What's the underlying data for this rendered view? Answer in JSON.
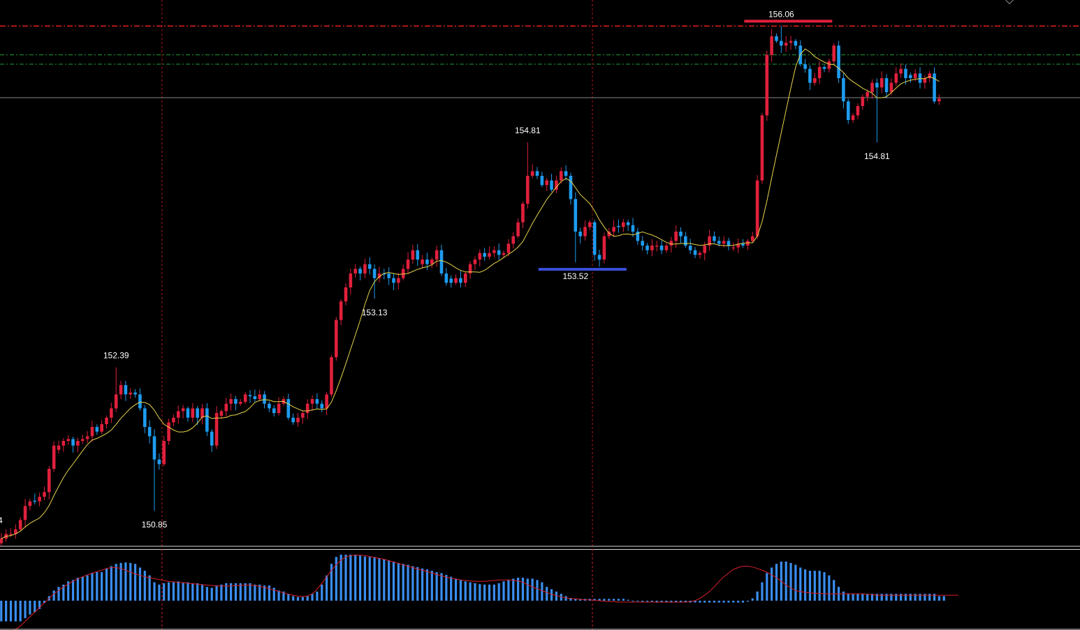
{
  "chart_data": [
    {
      "type": "candlestick",
      "title": "",
      "colors": {
        "up": "#e0203c",
        "down": "#1e9cf0",
        "ma": "#e8d44a",
        "background": "#000000",
        "grid_v": "#b01818"
      },
      "price_range": [
        150.2,
        156.25
      ],
      "levels": {
        "resistance_red": 156.06,
        "green_upper": 155.75,
        "green_lower": 155.65,
        "last_price_line": 155.29
      },
      "annotations": [
        {
          "price": 152.39,
          "text": "152.39",
          "kind": "high",
          "idx": 24
        },
        {
          "price": 150.85,
          "text": "150.85",
          "kind": "low",
          "idx": 32
        },
        {
          "price": 153.13,
          "text": "153.13",
          "kind": "low",
          "idx": 78
        },
        {
          "price": 154.81,
          "text": "154.81",
          "kind": "high",
          "idx": 110
        },
        {
          "price": 153.52,
          "text": "153.52",
          "kind": "low",
          "idx": 120,
          "bar": "#3a4ed8"
        },
        {
          "price": 156.06,
          "text": "156.06",
          "kind": "high",
          "idx": 163,
          "bar": "#e0203c"
        },
        {
          "price": 154.81,
          "text": "154.81",
          "kind": "low",
          "idx": 183
        }
      ],
      "left_edge_fragment": "4",
      "closes": [
        150.55,
        150.6,
        150.6,
        150.65,
        150.75,
        150.9,
        150.95,
        150.95,
        151.0,
        151.05,
        151.3,
        151.55,
        151.55,
        151.6,
        151.62,
        151.55,
        151.6,
        151.62,
        151.65,
        151.75,
        151.7,
        151.78,
        151.85,
        151.95,
        152.1,
        152.2,
        152.1,
        152.12,
        152.1,
        151.95,
        151.75,
        151.65,
        151.4,
        151.35,
        151.6,
        151.8,
        151.85,
        151.92,
        151.95,
        151.85,
        151.95,
        151.85,
        151.95,
        151.7,
        151.55,
        151.9,
        151.92,
        152.0,
        152.05,
        152.0,
        152.02,
        152.1,
        152.08,
        152.05,
        152.1,
        152.0,
        151.95,
        151.9,
        152.0,
        152.05,
        151.85,
        151.8,
        151.85,
        151.9,
        152.0,
        152.05,
        152.0,
        151.95,
        152.1,
        152.5,
        152.9,
        153.1,
        153.25,
        153.4,
        153.45,
        153.4,
        153.5,
        153.45,
        153.35,
        153.4,
        153.4,
        153.35,
        153.3,
        153.35,
        153.45,
        153.55,
        153.65,
        153.55,
        153.55,
        153.5,
        153.55,
        153.65,
        153.4,
        153.3,
        153.3,
        153.35,
        153.3,
        153.4,
        153.5,
        153.55,
        153.62,
        153.58,
        153.62,
        153.65,
        153.6,
        153.62,
        153.72,
        153.8,
        153.95,
        154.15,
        154.45,
        154.5,
        154.45,
        154.35,
        154.4,
        154.3,
        154.4,
        154.5,
        154.45,
        154.2,
        153.85,
        153.8,
        153.9,
        153.95,
        153.6,
        153.55,
        153.8,
        153.85,
        153.9,
        153.9,
        153.95,
        153.92,
        153.85,
        153.75,
        153.7,
        153.65,
        153.7,
        153.7,
        153.65,
        153.7,
        153.75,
        153.85,
        153.8,
        153.7,
        153.65,
        153.6,
        153.62,
        153.7,
        153.8,
        153.75,
        153.72,
        153.75,
        153.7,
        153.68,
        153.72,
        153.7,
        153.75,
        153.8,
        154.4,
        155.1,
        155.75,
        155.95,
        155.9,
        155.85,
        155.88,
        155.9,
        155.85,
        155.65,
        155.6,
        155.45,
        155.5,
        155.62,
        155.6,
        155.68,
        155.85,
        155.5,
        155.25,
        155.05,
        155.1,
        155.2,
        155.3,
        155.35,
        155.45,
        155.4,
        155.5,
        155.35,
        155.45,
        155.55,
        155.6,
        155.5,
        155.5,
        155.55,
        155.45,
        155.5,
        155.55,
        155.25,
        155.28
      ]
    },
    {
      "type": "histogram",
      "title": "",
      "colors": {
        "bars": "#3a8ef0",
        "signal": "#d8202a"
      },
      "y_range": [
        -1.0,
        1.0
      ],
      "values": [
        -0.45,
        -0.45,
        -0.45,
        -0.45,
        -0.45,
        -0.38,
        -0.3,
        -0.25,
        -0.18,
        -0.05,
        0.1,
        0.22,
        0.3,
        0.35,
        0.42,
        0.45,
        0.5,
        0.52,
        0.55,
        0.6,
        0.62,
        0.62,
        0.7,
        0.75,
        0.8,
        0.82,
        0.83,
        0.82,
        0.8,
        0.72,
        0.65,
        0.55,
        0.4,
        0.35,
        0.38,
        0.4,
        0.4,
        0.42,
        0.4,
        0.4,
        0.38,
        0.38,
        0.35,
        0.3,
        0.28,
        0.33,
        0.35,
        0.38,
        0.38,
        0.38,
        0.38,
        0.38,
        0.38,
        0.35,
        0.35,
        0.33,
        0.33,
        0.28,
        0.22,
        0.2,
        0.15,
        0.1,
        0.08,
        0.08,
        0.1,
        0.15,
        0.2,
        0.35,
        0.55,
        0.8,
        0.95,
        1.0,
        1.0,
        1.0,
        1.0,
        0.98,
        0.96,
        0.95,
        0.95,
        0.92,
        0.9,
        0.88,
        0.85,
        0.82,
        0.8,
        0.78,
        0.75,
        0.73,
        0.7,
        0.68,
        0.65,
        0.62,
        0.6,
        0.56,
        0.52,
        0.48,
        0.45,
        0.42,
        0.4,
        0.38,
        0.36,
        0.35,
        0.35,
        0.35,
        0.38,
        0.42,
        0.45,
        0.48,
        0.5,
        0.5,
        0.48,
        0.48,
        0.45,
        0.4,
        0.3,
        0.25,
        0.2,
        0.15,
        0.1,
        0.06,
        0.04,
        0.04,
        0.04,
        0.04,
        0.04,
        0.04,
        0.04,
        0.04,
        0.04,
        0.04,
        0.04,
        0.02,
        0.0,
        0.0,
        -0.02,
        -0.02,
        -0.02,
        -0.04,
        -0.04,
        -0.04,
        -0.04,
        -0.04,
        -0.04,
        -0.04,
        -0.04,
        -0.04,
        -0.04,
        -0.04,
        -0.04,
        -0.04,
        -0.04,
        -0.04,
        -0.04,
        -0.04,
        -0.04,
        -0.04,
        -0.02,
        0.05,
        0.2,
        0.4,
        0.6,
        0.72,
        0.8,
        0.85,
        0.85,
        0.82,
        0.78,
        0.72,
        0.68,
        0.65,
        0.65,
        0.65,
        0.62,
        0.55,
        0.45,
        0.3,
        0.2,
        0.15,
        0.15,
        0.15,
        0.15,
        0.15,
        0.15,
        0.15,
        0.15,
        0.15,
        0.15,
        0.15,
        0.15,
        0.15,
        0.15,
        0.15,
        0.15,
        0.15,
        0.15,
        0.15,
        0.1,
        0.1
      ],
      "signal": [
        -0.75,
        -0.72,
        -0.68,
        -0.62,
        -0.55,
        -0.45,
        -0.35,
        -0.25,
        -0.15,
        -0.05,
        0.05,
        0.15,
        0.22,
        0.3,
        0.36,
        0.42,
        0.48,
        0.52,
        0.56,
        0.6,
        0.63,
        0.66,
        0.7,
        0.72,
        0.72,
        0.7,
        0.66,
        0.62,
        0.58,
        0.55,
        0.52,
        0.5,
        0.48,
        0.46,
        0.44,
        0.42,
        0.41,
        0.4,
        0.39,
        0.38,
        0.37,
        0.36,
        0.35,
        0.34,
        0.33,
        0.32,
        0.32,
        0.32,
        0.32,
        0.33,
        0.33,
        0.34,
        0.34,
        0.33,
        0.31,
        0.29,
        0.26,
        0.23,
        0.2,
        0.17,
        0.14,
        0.12,
        0.1,
        0.09,
        0.1,
        0.15,
        0.25,
        0.38,
        0.52,
        0.66,
        0.78,
        0.88,
        0.95,
        0.98,
        0.99,
        0.99,
        0.98,
        0.96,
        0.94,
        0.92,
        0.9,
        0.87,
        0.84,
        0.81,
        0.78,
        0.75,
        0.72,
        0.69,
        0.66,
        0.63,
        0.6,
        0.57,
        0.54,
        0.51,
        0.49,
        0.47,
        0.45,
        0.44,
        0.43,
        0.42,
        0.42,
        0.42,
        0.43,
        0.44,
        0.45,
        0.45,
        0.45,
        0.44,
        0.43,
        0.4,
        0.35,
        0.3,
        0.26,
        0.22,
        0.18,
        0.14,
        0.11,
        0.08,
        0.06,
        0.05,
        0.04,
        0.03,
        0.02,
        0.02,
        0.01,
        0.0,
        -0.01,
        -0.02,
        -0.02,
        -0.03,
        -0.03,
        -0.03,
        -0.03,
        -0.03,
        -0.03,
        -0.03,
        -0.03,
        -0.03,
        -0.03,
        -0.03,
        -0.03,
        -0.03,
        -0.03,
        -0.03,
        -0.02,
        0.0,
        0.05,
        0.12,
        0.2,
        0.3,
        0.42,
        0.52,
        0.6,
        0.68,
        0.72,
        0.75,
        0.75,
        0.73,
        0.7,
        0.66,
        0.62,
        0.56,
        0.5,
        0.42,
        0.34,
        0.28,
        0.22,
        0.2,
        0.18,
        0.17,
        0.16,
        0.16,
        0.15,
        0.15,
        0.15,
        0.15,
        0.15,
        0.15,
        0.15,
        0.15,
        0.15,
        0.14,
        0.13,
        0.12,
        0.12,
        0.12,
        0.12,
        0.12,
        0.12,
        0.12,
        0.12,
        0.12,
        0.12,
        0.12,
        0.12,
        0.12,
        0.12,
        0.12,
        0.12,
        0.12,
        0.12
      ]
    }
  ]
}
